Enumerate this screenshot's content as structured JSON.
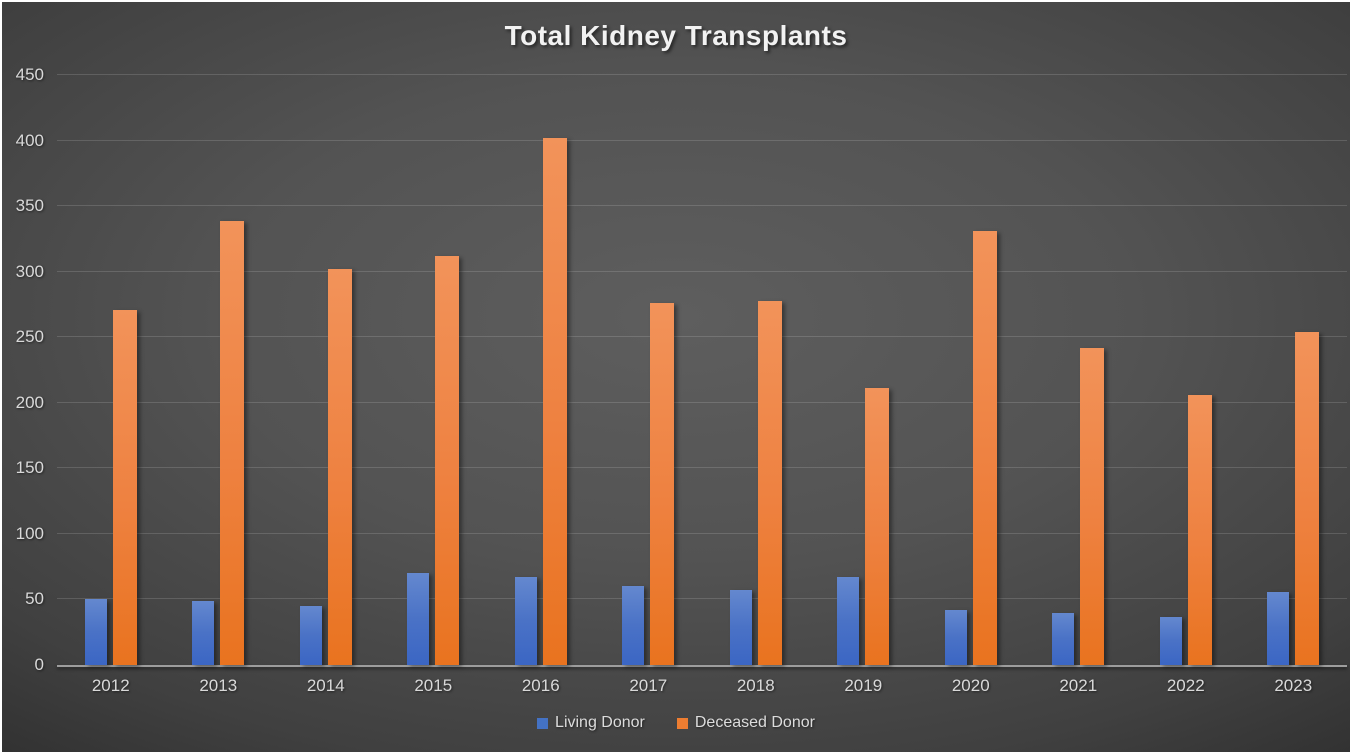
{
  "chart_data": {
    "type": "bar",
    "title": "Total Kidney Transplants",
    "categories": [
      "2012",
      "2013",
      "2014",
      "2015",
      "2016",
      "2017",
      "2018",
      "2019",
      "2020",
      "2021",
      "2022",
      "2023"
    ],
    "series": [
      {
        "name": "Living Donor",
        "color": "#4472C4",
        "values": [
          50,
          49,
          45,
          70,
          67,
          60,
          57,
          67,
          42,
          40,
          37,
          56
        ]
      },
      {
        "name": "Deceased Donor",
        "color": "#ED7D31",
        "values": [
          271,
          339,
          302,
          312,
          402,
          276,
          278,
          211,
          331,
          242,
          206,
          254
        ]
      }
    ],
    "xlabel": "",
    "ylabel": "",
    "ylim": [
      0,
      450
    ],
    "yticks": [
      0,
      50,
      100,
      150,
      200,
      250,
      300,
      350,
      400,
      450
    ],
    "grid": true,
    "legend_position": "bottom",
    "background": "dark-gray-gradient"
  }
}
